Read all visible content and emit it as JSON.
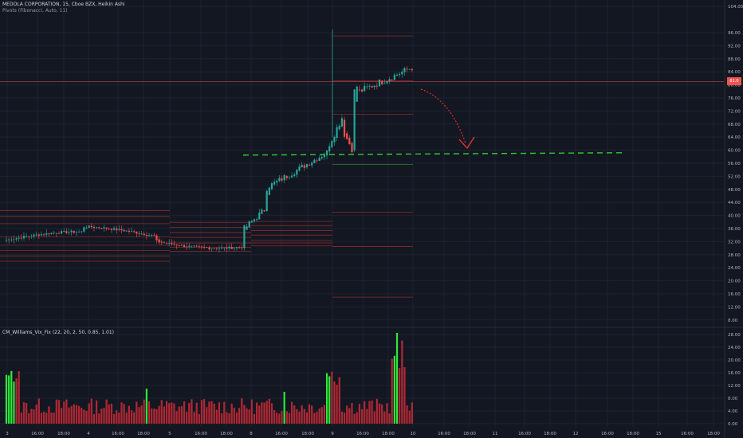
{
  "header": {
    "symbol_line": "MEDOLA CORPORATION, 15, Cboe BZX, Heikin Ashi",
    "pivots_line": "Pivots (Fibonacci, Auto, 11)"
  },
  "indicator": {
    "label": "CM_Williams_Vix_Fix (22, 20, 2, 50, 0.85, 1.01)"
  },
  "price_tag": "81.0",
  "colors": {
    "background": "#131722",
    "grid": "#1e2230",
    "up_candle": "#26a69a",
    "down_candle": "#ef5350",
    "vix_red": "#b22833",
    "vix_green": "#2ee83a",
    "annotation_arrow": "#ff3333",
    "support_line": "#33cc33",
    "pivot_line": "#8b2a2a"
  },
  "chart_data": [
    {
      "type": "candlestick",
      "y_axis_ticks": [
        "104.00",
        "96.00",
        "92.00",
        "88.00",
        "84.00",
        "80.00",
        "76.00",
        "72.00",
        "68.00",
        "64.00",
        "60.00",
        "56.00",
        "52.00",
        "48.00",
        "44.00",
        "40.00",
        "36.00",
        "32.00",
        "28.00",
        "24.00",
        "20.00",
        "16.00",
        "12.00",
        "8.00"
      ],
      "ylim": [
        6,
        106
      ],
      "x_axis_ticks": [
        "3",
        "16:00",
        "18:00",
        "4",
        "16:00",
        "18:00",
        "5",
        "16:00",
        "18:00",
        "8",
        "16:00",
        "18:00",
        "9",
        "16:00",
        "18:00",
        "10",
        "16:00",
        "18:00",
        "11",
        "16:00",
        "18:00",
        "12",
        "16:00",
        "18:00",
        "15",
        "16:00",
        "18:00"
      ],
      "annotations": {
        "support_level": 58.5,
        "current_price_line": 81.0
      }
    },
    {
      "type": "bar",
      "title": "CM_Williams_Vix_Fix (22, 20, 2, 50, 0.85, 1.01)",
      "y_axis_ticks": [
        "28.00",
        "24.00",
        "20.00",
        "16.00",
        "12.00",
        "8.00",
        "4.00",
        "0.00"
      ],
      "ylim": [
        -1,
        30
      ]
    }
  ]
}
